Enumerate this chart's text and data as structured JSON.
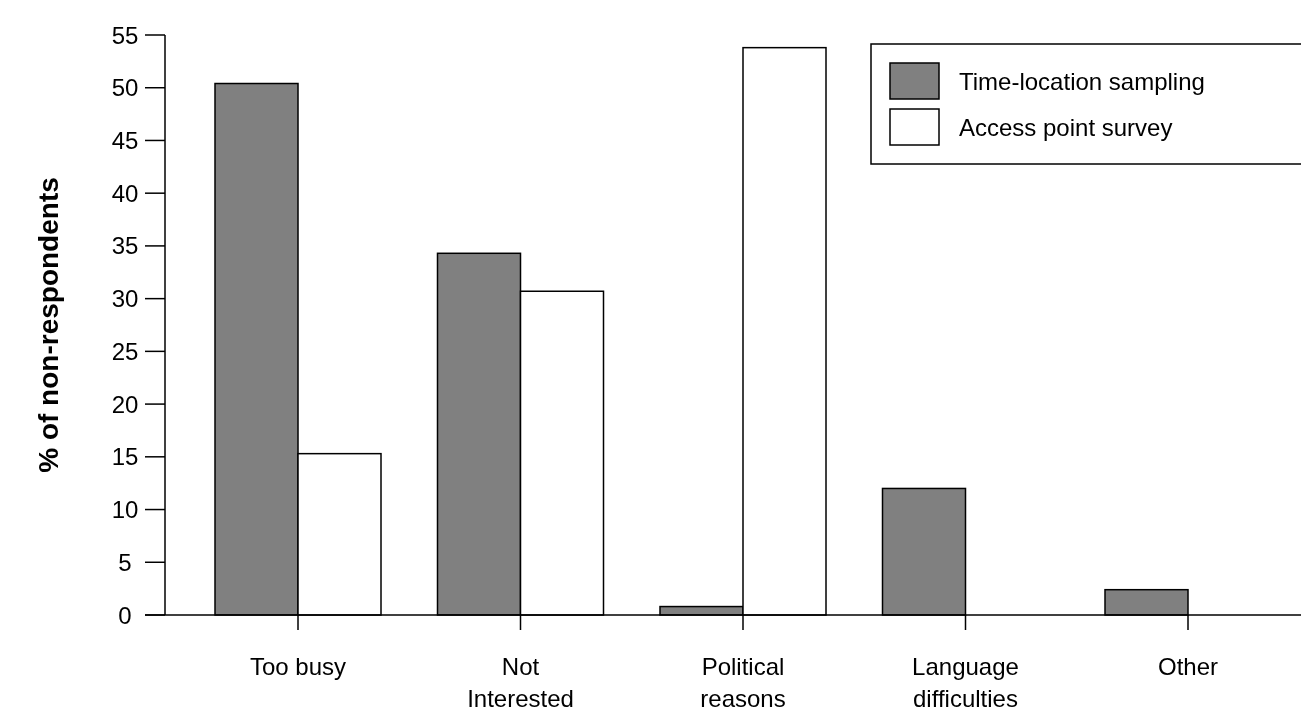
{
  "chart_data": {
    "type": "bar",
    "ylabel": "% of non-respondents",
    "categories": [
      "Too busy",
      "Not\nInterested",
      "Political\nreasons",
      "Language\ndifficulties",
      "Other"
    ],
    "series": [
      {
        "name": "Time-location sampling",
        "color": "#808080",
        "values": [
          50.4,
          34.3,
          0.8,
          12.0,
          2.4
        ]
      },
      {
        "name": "Access point survey",
        "color": "#ffffff",
        "values": [
          15.3,
          30.7,
          53.8,
          0,
          0
        ]
      }
    ],
    "ylim": [
      0,
      55
    ],
    "yticks": [
      0,
      5,
      10,
      15,
      20,
      25,
      30,
      35,
      40,
      45,
      50,
      55
    ],
    "legend": "top right"
  }
}
